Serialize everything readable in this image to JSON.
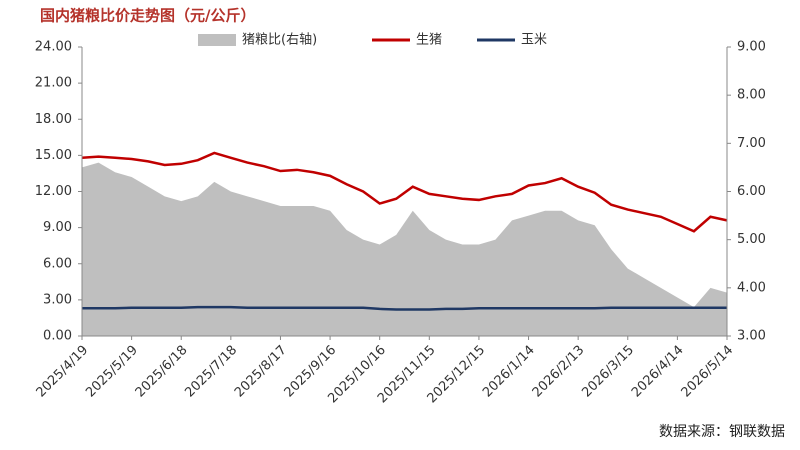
{
  "chart_data": {
    "type": "combo",
    "title": "国内猪粮比价走势图（元/公斤）",
    "source": "数据来源：钢联数据",
    "categories": [
      "2025/4/19",
      null,
      null,
      "2025/5/19",
      null,
      null,
      "2025/6/18",
      null,
      null,
      "2025/7/18",
      null,
      null,
      "2025/8/17",
      null,
      null,
      "2025/9/16",
      null,
      null,
      "2025/10/16",
      null,
      null,
      "2025/11/15",
      null,
      null,
      "2025/12/15",
      null,
      null,
      "2026/1/14",
      null,
      null,
      "2026/2/13",
      null,
      null,
      "2026/3/15",
      null,
      null,
      "2026/4/14",
      null,
      null,
      "2026/5/14"
    ],
    "series": [
      {
        "name": "猪粮比(右轴)",
        "type": "area",
        "axis": "y2",
        "color": "#bfbfbf",
        "values": [
          6.5,
          6.6,
          6.4,
          6.3,
          6.1,
          5.9,
          5.8,
          5.9,
          6.2,
          6.0,
          5.9,
          5.8,
          5.7,
          5.7,
          5.7,
          5.6,
          5.2,
          5.0,
          4.9,
          5.1,
          5.6,
          5.2,
          5.0,
          4.9,
          4.9,
          5.0,
          5.4,
          5.5,
          5.6,
          5.6,
          5.4,
          5.3,
          4.8,
          4.4,
          4.2,
          4.0,
          3.8,
          3.6,
          4.0,
          3.9
        ]
      },
      {
        "name": "生猪",
        "type": "line",
        "color": "#c00000",
        "values": [
          14.8,
          14.9,
          14.8,
          14.7,
          14.5,
          14.2,
          14.3,
          14.6,
          15.2,
          14.8,
          14.4,
          14.1,
          13.7,
          13.8,
          13.6,
          13.3,
          12.6,
          12.0,
          11.0,
          11.4,
          12.4,
          11.8,
          11.6,
          11.4,
          11.3,
          11.6,
          11.8,
          12.5,
          12.7,
          13.1,
          12.4,
          11.9,
          10.9,
          10.5,
          10.2,
          9.9,
          9.3,
          8.7,
          9.9,
          9.6
        ]
      },
      {
        "name": "玉米",
        "type": "line",
        "color": "#1f3864",
        "values": [
          2.3,
          2.3,
          2.3,
          2.35,
          2.35,
          2.35,
          2.35,
          2.4,
          2.4,
          2.4,
          2.35,
          2.35,
          2.35,
          2.35,
          2.35,
          2.35,
          2.35,
          2.35,
          2.25,
          2.2,
          2.2,
          2.2,
          2.25,
          2.25,
          2.3,
          2.3,
          2.3,
          2.3,
          2.3,
          2.3,
          2.3,
          2.3,
          2.35,
          2.35,
          2.35,
          2.35,
          2.35,
          2.35,
          2.35,
          2.35
        ]
      }
    ],
    "ylim": [
      0,
      24
    ],
    "yticks": [
      {
        "value": 0,
        "label": "0.00"
      },
      {
        "value": 3,
        "label": "3.00"
      },
      {
        "value": 6,
        "label": "6.00"
      },
      {
        "value": 9,
        "label": "9.00"
      },
      {
        "value": 12,
        "label": "12.00"
      },
      {
        "value": 15,
        "label": "15.00"
      },
      {
        "value": 18,
        "label": "18.00"
      },
      {
        "value": 21,
        "label": "21.00"
      },
      {
        "value": 24,
        "label": "24.00"
      }
    ],
    "y2lim": [
      3,
      9
    ],
    "y2ticks": [
      {
        "value": 3,
        "label": "3.00"
      },
      {
        "value": 4,
        "label": "4.00"
      },
      {
        "value": 5,
        "label": "5.00"
      },
      {
        "value": 6,
        "label": "6.00"
      },
      {
        "value": 7,
        "label": "7.00"
      },
      {
        "value": 8,
        "label": "8.00"
      },
      {
        "value": 9,
        "label": "9.00"
      }
    ]
  }
}
